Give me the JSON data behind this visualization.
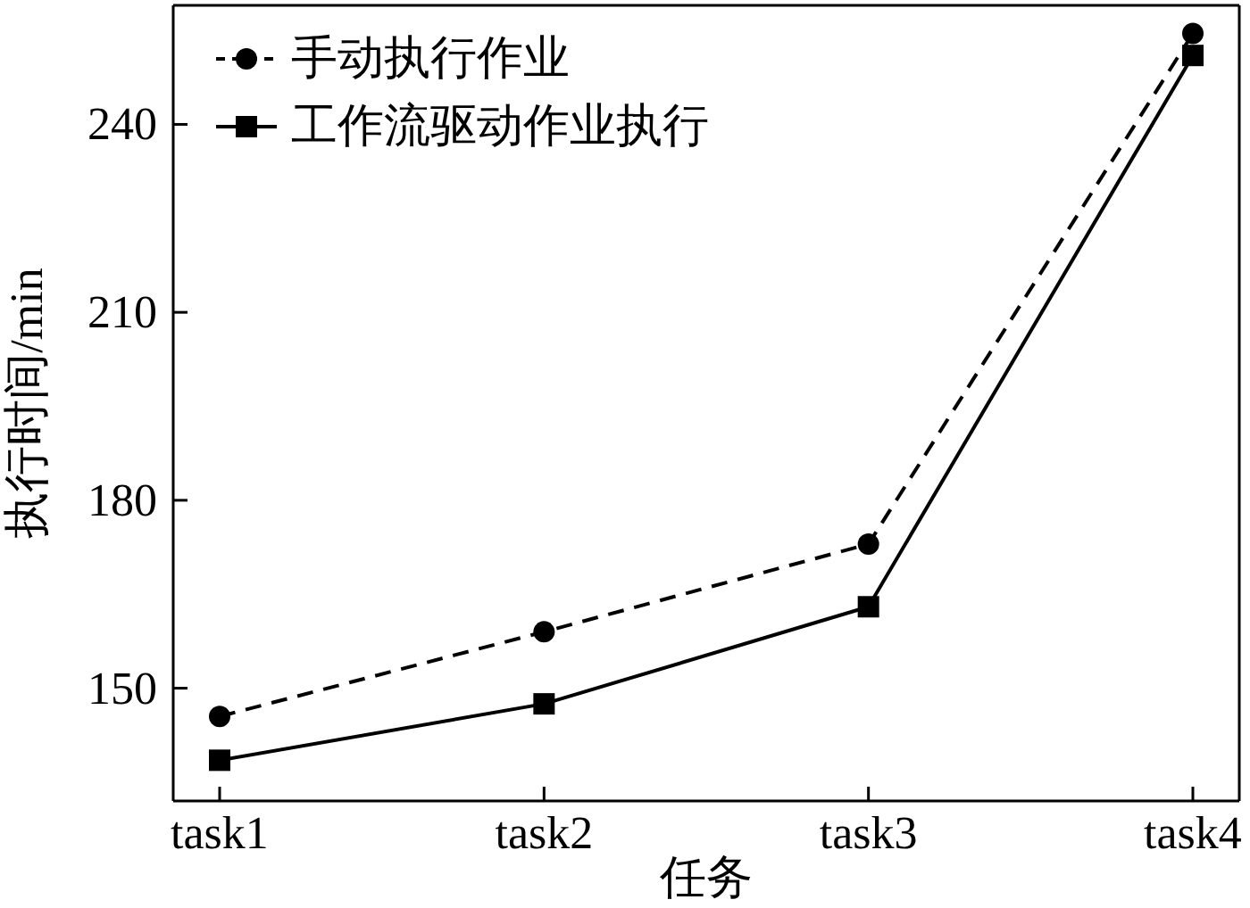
{
  "chart_data": {
    "type": "line",
    "xlabel": "任务",
    "ylabel": "执行时间/min",
    "categories": [
      "task1",
      "task2",
      "task3",
      "task4"
    ],
    "series": [
      {
        "name": "手动执行作业",
        "color": "#000000",
        "values": [
          145.5,
          159,
          173,
          254.5
        ],
        "marker": "circle",
        "line_style": "dashed"
      },
      {
        "name": "工作流驱动作业执行",
        "color": "#000000",
        "values": [
          138.5,
          147.5,
          163,
          251
        ],
        "marker": "square",
        "line_style": "solid"
      }
    ],
    "ylim": [
      132,
      259
    ],
    "yticks": [
      150,
      180,
      210,
      240
    ],
    "legend": "top left"
  }
}
